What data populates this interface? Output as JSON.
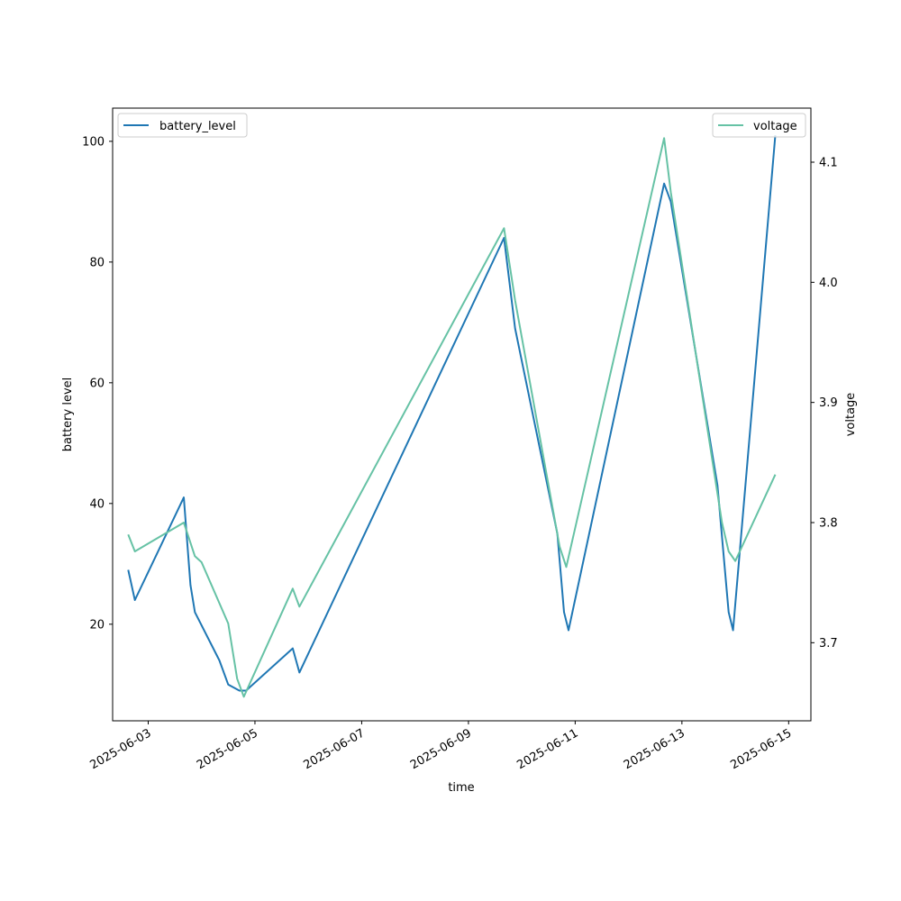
{
  "chart_data": {
    "type": "line",
    "xlabel": "time",
    "ylabel": "battery level",
    "y2label": "voltage",
    "xlim": [
      "2025-06-02T08:00",
      "2025-06-15T10:00"
    ],
    "ylim": [
      4.0,
      105.5
    ],
    "y2lim": [
      3.635,
      4.145
    ],
    "x_ticks": [
      "2025-06-03",
      "2025-06-05",
      "2025-06-07",
      "2025-06-09",
      "2025-06-11",
      "2025-06-13",
      "2025-06-15"
    ],
    "y_ticks": [
      20,
      40,
      60,
      80,
      100
    ],
    "y2_ticks": [
      3.7,
      3.8,
      3.9,
      4.0,
      4.1
    ],
    "grid": false,
    "series": [
      {
        "name": "battery_level",
        "axis": "left",
        "color": "#1f77b4",
        "legend": "top-left",
        "points": [
          {
            "x": "2025-06-02T15:00",
            "y": 29
          },
          {
            "x": "2025-06-02T18:00",
            "y": 24
          },
          {
            "x": "2025-06-03T16:00",
            "y": 41
          },
          {
            "x": "2025-06-03T19:00",
            "y": 26.5
          },
          {
            "x": "2025-06-03T21:00",
            "y": 22
          },
          {
            "x": "2025-06-04T08:00",
            "y": 14
          },
          {
            "x": "2025-06-04T12:00",
            "y": 10
          },
          {
            "x": "2025-06-04T17:00",
            "y": 9
          },
          {
            "x": "2025-06-04T20:00",
            "y": 9
          },
          {
            "x": "2025-06-05T17:00",
            "y": 16
          },
          {
            "x": "2025-06-05T20:00",
            "y": 12
          },
          {
            "x": "2025-06-09T16:00",
            "y": 84
          },
          {
            "x": "2025-06-09T21:00",
            "y": 69
          },
          {
            "x": "2025-06-10T16:00",
            "y": 35
          },
          {
            "x": "2025-06-10T19:00",
            "y": 22
          },
          {
            "x": "2025-06-10T21:00",
            "y": 19
          },
          {
            "x": "2025-06-12T16:00",
            "y": 93
          },
          {
            "x": "2025-06-12T19:00",
            "y": 90
          },
          {
            "x": "2025-06-13T16:00",
            "y": 43
          },
          {
            "x": "2025-06-13T21:00",
            "y": 22
          },
          {
            "x": "2025-06-13T23:00",
            "y": 19
          },
          {
            "x": "2025-06-14T18:00",
            "y": 101
          }
        ]
      },
      {
        "name": "voltage",
        "axis": "right",
        "color": "#66c2a5",
        "legend": "top-right",
        "points": [
          {
            "x": "2025-06-02T15:00",
            "y": 3.79
          },
          {
            "x": "2025-06-02T18:00",
            "y": 3.776
          },
          {
            "x": "2025-06-03T16:00",
            "y": 3.8
          },
          {
            "x": "2025-06-03T21:00",
            "y": 3.772
          },
          {
            "x": "2025-06-04T00:00",
            "y": 3.767
          },
          {
            "x": "2025-06-04T12:00",
            "y": 3.716
          },
          {
            "x": "2025-06-04T16:00",
            "y": 3.67
          },
          {
            "x": "2025-06-04T19:00",
            "y": 3.655
          },
          {
            "x": "2025-06-05T17:00",
            "y": 3.745
          },
          {
            "x": "2025-06-05T20:00",
            "y": 3.73
          },
          {
            "x": "2025-06-09T16:00",
            "y": 4.045
          },
          {
            "x": "2025-06-09T21:00",
            "y": 3.985
          },
          {
            "x": "2025-06-10T17:00",
            "y": 3.78
          },
          {
            "x": "2025-06-10T20:00",
            "y": 3.763
          },
          {
            "x": "2025-06-12T16:00",
            "y": 4.12
          },
          {
            "x": "2025-06-12T19:00",
            "y": 4.075
          },
          {
            "x": "2025-06-13T18:00",
            "y": 3.8
          },
          {
            "x": "2025-06-13T21:00",
            "y": 3.776
          },
          {
            "x": "2025-06-14T00:00",
            "y": 3.768
          },
          {
            "x": "2025-06-14T18:00",
            "y": 3.84
          }
        ]
      }
    ]
  }
}
